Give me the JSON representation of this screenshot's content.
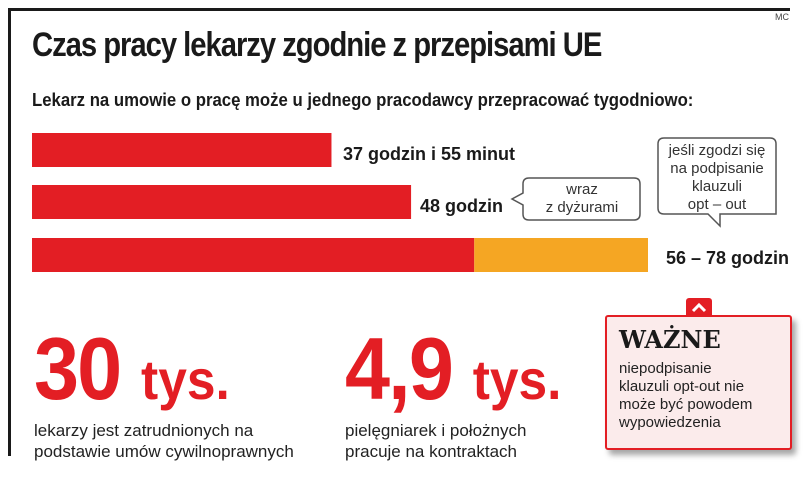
{
  "credit": "MC",
  "chart_data": {
    "type": "bar",
    "orientation": "horizontal",
    "title": "Czas pracy lekarzy zgodnie z przepisami UE",
    "subtitle": "Lekarz na umowie o pracę może u jednego pracodawcy przepracować tygodniowo:",
    "categories": [
      "37 godzin i 55 minut",
      "48 godzin",
      "56 – 78 godzin"
    ],
    "series": [
      {
        "color": "#e31e24",
        "values": [
          37.92,
          48,
          56
        ]
      },
      {
        "color": "#f5a623",
        "values": [
          0,
          0,
          22
        ]
      }
    ],
    "xlim": [
      0,
      78
    ],
    "grid": false,
    "annotations": [
      {
        "bar_index": 1,
        "text_lines": [
          "wraz",
          "z dyżurami"
        ]
      },
      {
        "bar_index": 2,
        "text_lines": [
          "jeśli zgodzi się",
          "na podpisanie",
          "klauzuli",
          "opt – out"
        ]
      }
    ]
  },
  "stats": [
    {
      "number": "30",
      "unit": "tys.",
      "desc_lines": [
        "lekarzy jest zatrudnionych na",
        "podstawie umów cywilnoprawnych"
      ]
    },
    {
      "number": "4,9",
      "unit": "tys.",
      "desc_lines": [
        "pielęgniarek i położnych",
        "pracuje na kontraktach"
      ]
    }
  ],
  "note": {
    "title": "WAŻNE",
    "body_lines": [
      "niepodpisanie",
      "klauzuli opt-out nie",
      "może być powodem",
      "wypowiedzenia"
    ]
  }
}
